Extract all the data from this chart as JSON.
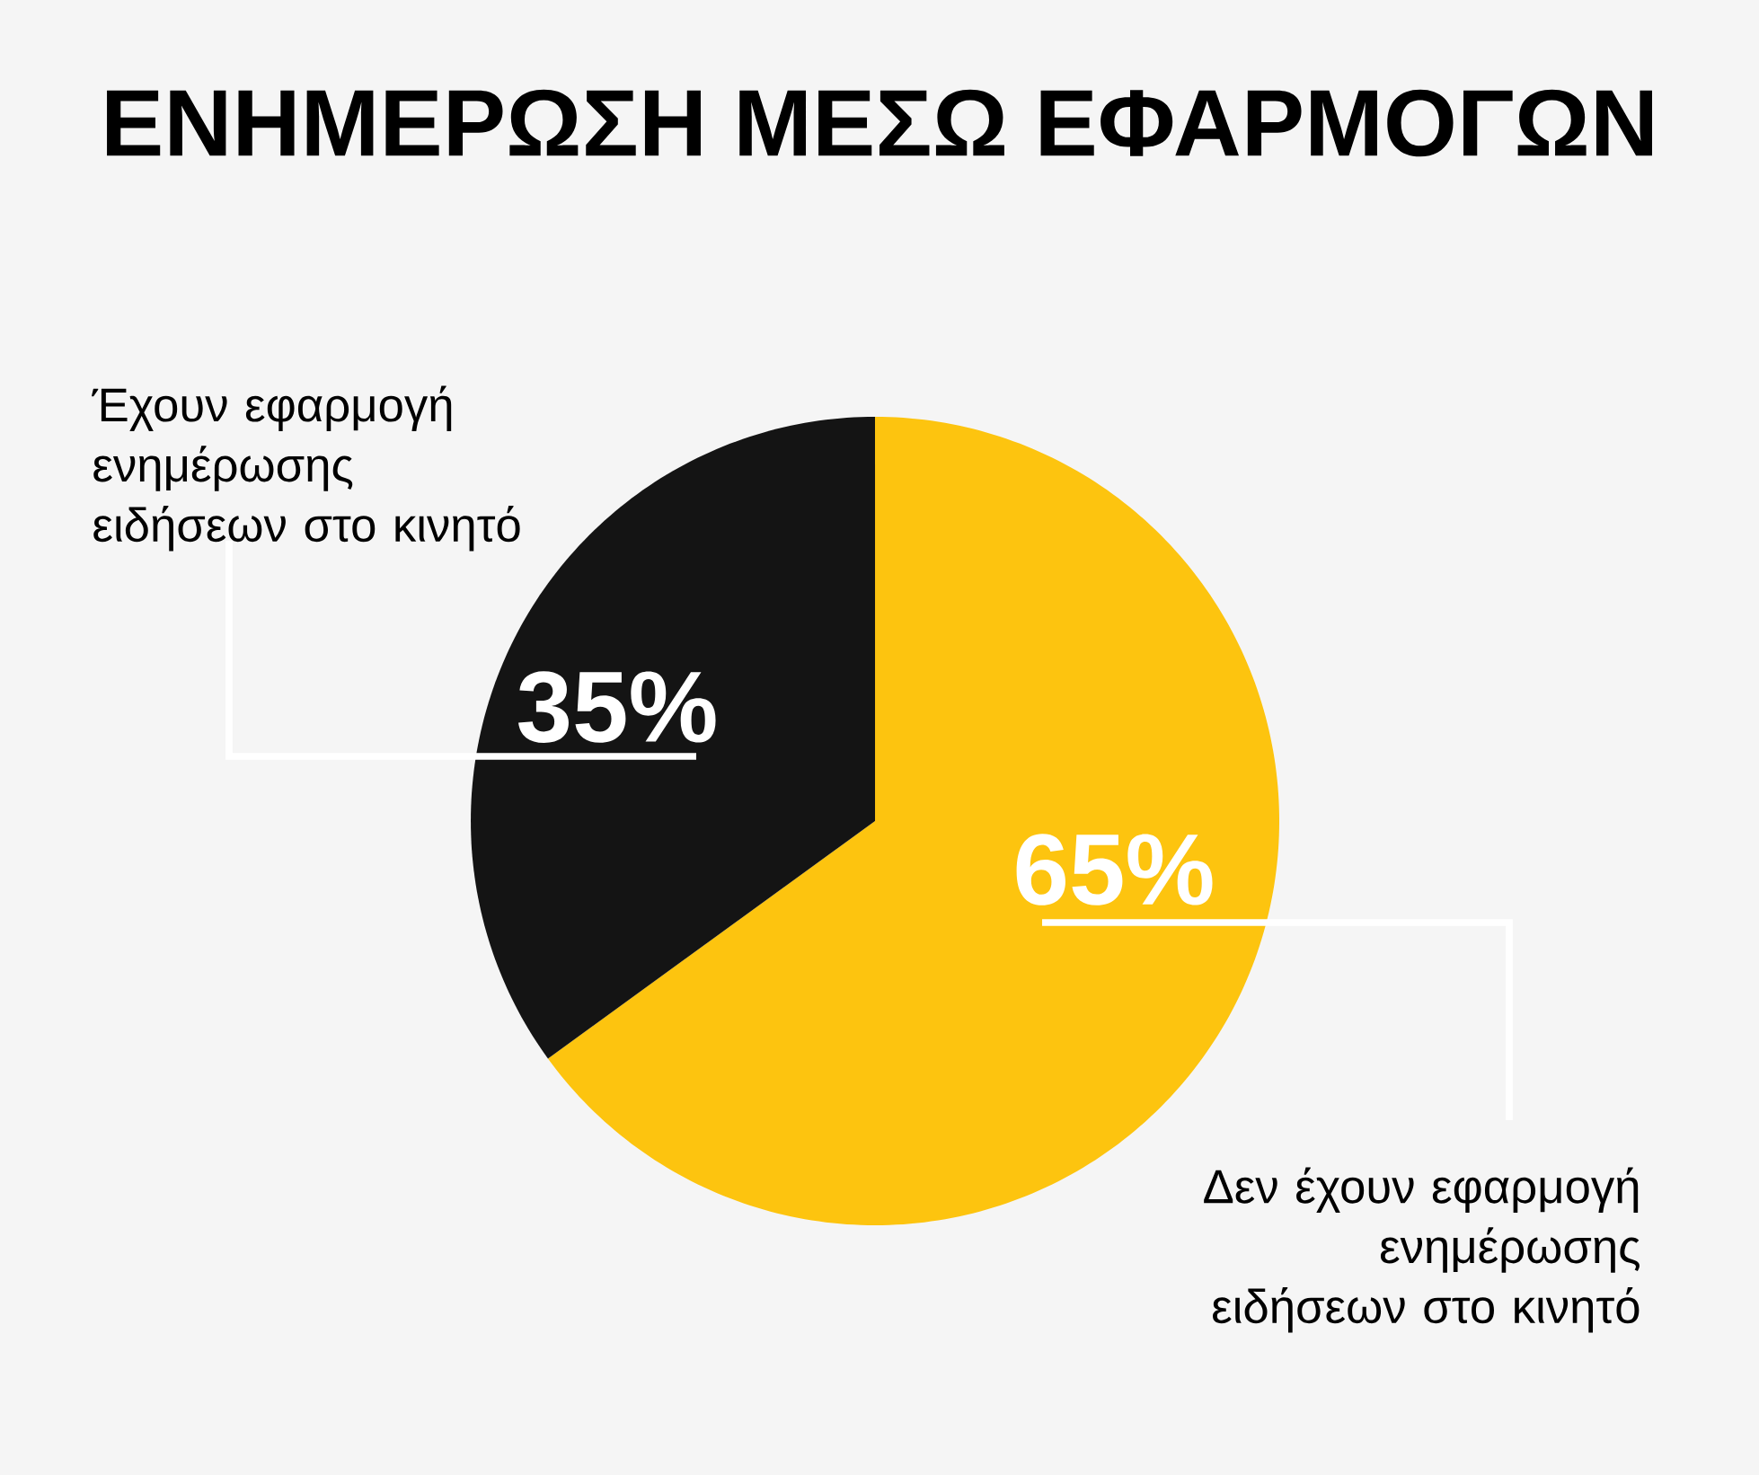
{
  "chart_data": {
    "type": "pie",
    "title": "ΕΝΗΜΕΡΩΣΗ ΜΕΣΩ ΕΦΑΡΜΟΓΩΝ",
    "categories": [
      "Δεν έχουν εφαρμογή ενημέρωσης ειδήσεων στο κινητό",
      "Έχουν εφαρμογή ενημέρωσης ειδήσεων στο κινητό"
    ],
    "values": [
      65,
      35
    ],
    "colors": [
      "#fdc40f",
      "#141414"
    ],
    "value_labels": [
      "65%",
      "35%"
    ]
  }
}
